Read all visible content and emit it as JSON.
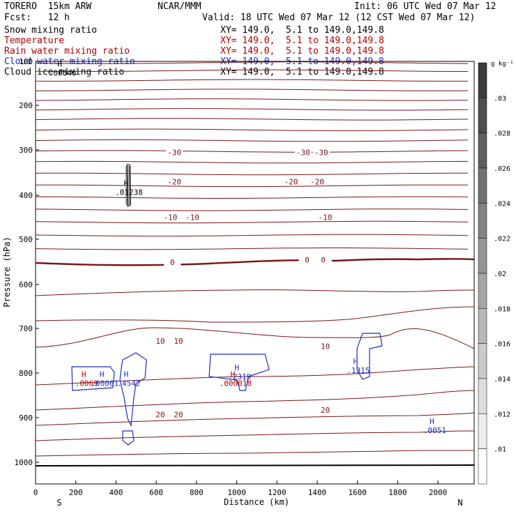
{
  "header": {
    "model": "TORERO  15km ARW",
    "center": "NCAR/MMM",
    "init": "Init: 06 UTC Wed 07 Mar 12",
    "fcst": "Fcst:   12 h",
    "valid": "Valid: 18 UTC Wed 07 Mar 12 (12 CST Wed 07 Mar 12)"
  },
  "fields": [
    {
      "name": "Snow mixing ratio",
      "xy": "XY= 149.0,  5.1 to 149.0,149.8",
      "color": "#000000"
    },
    {
      "name": "Temperature",
      "xy": "XY= 149.0,  5.1 to 149.0,149.8",
      "color": "#b00000"
    },
    {
      "name": "Rain water mixing ratio",
      "xy": "XY= 149.0,  5.1 to 149.0,149.8",
      "color": "#b00000"
    },
    {
      "name": "Cloud water mixing ratio",
      "xy": "XY= 149.0,  5.1 to 149.0,149.8",
      "color": "#1a2fbf"
    },
    {
      "name": "Cloud ice mixing ratio",
      "xy": "XY= 149.0,  5.1 to 149.0,149.8",
      "color": "#000000"
    }
  ],
  "chart_data": {
    "type": "cross-section contour",
    "xlabel": "Distance (km)",
    "ylabel": "Pressure (hPa)",
    "xlim": [
      0,
      2180
    ],
    "ylim": [
      1050,
      100
    ],
    "x_ticks": [
      0,
      200,
      400,
      600,
      800,
      1000,
      1200,
      1400,
      1600,
      1800,
      2000
    ],
    "y_ticks": [
      100,
      200,
      300,
      400,
      500,
      600,
      700,
      800,
      900,
      1000
    ],
    "x_ends": {
      "left": "S",
      "right": "N"
    },
    "colorbar": {
      "unit": "g kg⁻¹",
      "levels": [
        ".01",
        ".012",
        ".014",
        ".016",
        ".018",
        ".02",
        ".022",
        ".024",
        ".026",
        ".028",
        ".03"
      ]
    },
    "temperature_labels": [
      {
        "text": "-30",
        "x": 690,
        "p": 305
      },
      {
        "text": "-30",
        "x": 1330,
        "p": 305
      },
      {
        "text": "-30",
        "x": 1420,
        "p": 305
      },
      {
        "text": "-20",
        "x": 690,
        "p": 370
      },
      {
        "text": "-20",
        "x": 1270,
        "p": 370
      },
      {
        "text": "-20",
        "x": 1400,
        "p": 370
      },
      {
        "text": "-10",
        "x": 670,
        "p": 450
      },
      {
        "text": "-10",
        "x": 780,
        "p": 450
      },
      {
        "text": "-10",
        "x": 1440,
        "p": 450
      },
      {
        "text": "0",
        "x": 680,
        "p": 551
      },
      {
        "text": "0",
        "x": 1350,
        "p": 545
      },
      {
        "text": "0",
        "x": 1430,
        "p": 545
      },
      {
        "text": "10",
        "x": 620,
        "p": 728
      },
      {
        "text": "10",
        "x": 710,
        "p": 728
      },
      {
        "text": "10",
        "x": 1440,
        "p": 740
      },
      {
        "text": "20",
        "x": 620,
        "p": 893
      },
      {
        "text": "20",
        "x": 710,
        "p": 893
      },
      {
        "text": "20",
        "x": 1440,
        "p": 883
      }
    ],
    "highs": [
      {
        "label": ".01238",
        "x": 450,
        "p": 385,
        "color": "#000000"
      },
      {
        "label": ".00046",
        "x": 120,
        "p": 118,
        "color": "#000000"
      },
      {
        "label": ".0069",
        "x": 240,
        "p": 815,
        "color": "#b00000"
      },
      {
        "label": ".00061",
        "x": 330,
        "p": 815,
        "color": "#1a2fbf"
      },
      {
        "label": ".4542",
        "x": 450,
        "p": 815,
        "color": "#1a2fbf"
      },
      {
        "label": ".2319",
        "x": 1000,
        "p": 800,
        "color": "#1a2fbf"
      },
      {
        "label": ".000018",
        "x": 980,
        "p": 815,
        "color": "#b00000"
      },
      {
        "label": ".1315",
        "x": 1590,
        "p": 786,
        "color": "#1a2fbf"
      },
      {
        "label": ".0051",
        "x": 1970,
        "p": 920,
        "color": "#1a2fbf"
      }
    ]
  }
}
